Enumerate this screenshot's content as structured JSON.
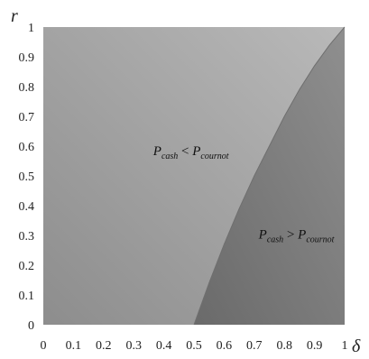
{
  "chart_data": {
    "type": "area",
    "title": "",
    "xlabel": "δ",
    "ylabel": "r",
    "xlim": [
      0,
      1
    ],
    "ylim": [
      0,
      1
    ],
    "xticks": [
      0,
      0.1,
      0.2,
      0.3,
      0.4,
      0.5,
      0.6,
      0.7,
      0.8,
      0.9,
      1
    ],
    "yticks": [
      0,
      0.1,
      0.2,
      0.3,
      0.4,
      0.5,
      0.6,
      0.7,
      0.8,
      0.9,
      1
    ],
    "grid": false,
    "boundary": {
      "x": [
        0.5,
        0.55,
        0.6,
        0.65,
        0.7,
        0.75,
        0.8,
        0.85,
        0.9,
        0.95,
        1.0
      ],
      "y": [
        0.0,
        0.14,
        0.27,
        0.39,
        0.5,
        0.6,
        0.7,
        0.79,
        0.87,
        0.94,
        1.0
      ]
    },
    "regions": [
      {
        "side": "left",
        "label_main_1": "P",
        "label_sub_1": "cash",
        "label_op": " < ",
        "label_main_2": "P",
        "label_sub_2": "cournot",
        "label_at": [
          0.49,
          0.57
        ],
        "color": "#9b9b9b"
      },
      {
        "side": "right",
        "label_main_1": "P",
        "label_sub_1": "cash",
        "label_op": " > ",
        "label_main_2": "P",
        "label_sub_2": "cournot",
        "label_at": [
          0.84,
          0.29
        ],
        "color": "#7a7a7a"
      }
    ]
  }
}
